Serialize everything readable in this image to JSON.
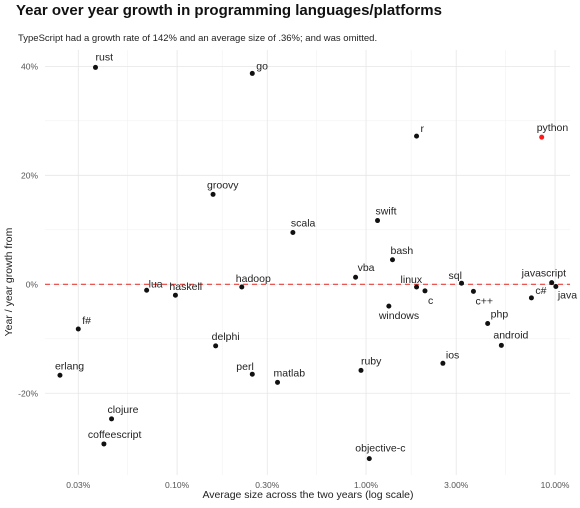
{
  "chart_data": {
    "type": "scatter",
    "title": "Year over year growth in programming languages/platforms",
    "subtitle": "TypeScript had a growth rate of 142% and an average size of .36%; and was omitted.",
    "xlabel": "Average size across the two years (log scale)",
    "ylabel": "Year / year growth from",
    "x_scale": "log",
    "xlim": [
      0.0002,
      0.12
    ],
    "ylim": [
      -0.35,
      0.43
    ],
    "x_ticks": [
      {
        "value": 0.0003,
        "label": "0.03%"
      },
      {
        "value": 0.001,
        "label": "0.10%"
      },
      {
        "value": 0.003,
        "label": "0.30%"
      },
      {
        "value": 0.01,
        "label": "1.00%"
      },
      {
        "value": 0.03,
        "label": "3.00%"
      },
      {
        "value": 0.1,
        "label": "10.00%"
      }
    ],
    "y_ticks": [
      {
        "value": -0.2,
        "label": "-20%"
      },
      {
        "value": 0.0,
        "label": "0%"
      },
      {
        "value": 0.2,
        "label": "20%"
      },
      {
        "value": 0.4,
        "label": "40%"
      }
    ],
    "reference_line": {
      "y": 0,
      "color": "#e8413b",
      "style": "dashed"
    },
    "grid": true,
    "colors": {
      "point": "#111111",
      "highlight": "#ff1a1a",
      "grid": "#e6e6e6"
    },
    "points": [
      {
        "label": "rust",
        "x": 0.00037,
        "y": 0.398,
        "color": "#111111"
      },
      {
        "label": "go",
        "x": 0.0025,
        "y": 0.387,
        "color": "#111111"
      },
      {
        "label": "r",
        "x": 0.0185,
        "y": 0.272,
        "color": "#111111"
      },
      {
        "label": "python",
        "x": 0.085,
        "y": 0.27,
        "color": "#ff1a1a"
      },
      {
        "label": "groovy",
        "x": 0.00155,
        "y": 0.165,
        "color": "#111111"
      },
      {
        "label": "swift",
        "x": 0.0115,
        "y": 0.117,
        "color": "#111111"
      },
      {
        "label": "scala",
        "x": 0.0041,
        "y": 0.095,
        "color": "#111111"
      },
      {
        "label": "bash",
        "x": 0.0138,
        "y": 0.045,
        "color": "#111111"
      },
      {
        "label": "vba",
        "x": 0.0088,
        "y": 0.013,
        "color": "#111111"
      },
      {
        "label": "lua",
        "x": 0.00069,
        "y": -0.011,
        "color": "#111111"
      },
      {
        "label": "haskell",
        "x": 0.00098,
        "y": -0.02,
        "color": "#111111"
      },
      {
        "label": "hadoop",
        "x": 0.0022,
        "y": -0.005,
        "color": "#111111"
      },
      {
        "label": "linux",
        "x": 0.0185,
        "y": -0.005,
        "color": "#111111"
      },
      {
        "label": "c",
        "x": 0.0205,
        "y": -0.012,
        "color": "#111111"
      },
      {
        "label": "windows",
        "x": 0.0132,
        "y": -0.04,
        "color": "#111111"
      },
      {
        "label": "sql",
        "x": 0.032,
        "y": 0.002,
        "color": "#111111"
      },
      {
        "label": "c++",
        "x": 0.037,
        "y": -0.013,
        "color": "#111111"
      },
      {
        "label": "javascript",
        "x": 0.096,
        "y": 0.003,
        "color": "#111111"
      },
      {
        "label": "java",
        "x": 0.101,
        "y": -0.004,
        "color": "#111111"
      },
      {
        "label": "c#",
        "x": 0.075,
        "y": -0.025,
        "color": "#111111"
      },
      {
        "label": "php",
        "x": 0.044,
        "y": -0.072,
        "color": "#111111"
      },
      {
        "label": "android",
        "x": 0.052,
        "y": -0.112,
        "color": "#111111"
      },
      {
        "label": "f#",
        "x": 0.0003,
        "y": -0.082,
        "color": "#111111"
      },
      {
        "label": "delphi",
        "x": 0.0016,
        "y": -0.113,
        "color": "#111111"
      },
      {
        "label": "ios",
        "x": 0.0255,
        "y": -0.145,
        "color": "#111111"
      },
      {
        "label": "perl",
        "x": 0.0025,
        "y": -0.165,
        "color": "#111111"
      },
      {
        "label": "ruby",
        "x": 0.0094,
        "y": -0.158,
        "color": "#111111"
      },
      {
        "label": "matlab",
        "x": 0.0034,
        "y": -0.18,
        "color": "#111111"
      },
      {
        "label": "erlang",
        "x": 0.00024,
        "y": -0.167,
        "color": "#111111"
      },
      {
        "label": "clojure",
        "x": 0.00045,
        "y": -0.247,
        "color": "#111111"
      },
      {
        "label": "coffeescript",
        "x": 0.00041,
        "y": -0.293,
        "color": "#111111"
      },
      {
        "label": "objective-c",
        "x": 0.0104,
        "y": -0.32,
        "color": "#111111"
      }
    ]
  }
}
